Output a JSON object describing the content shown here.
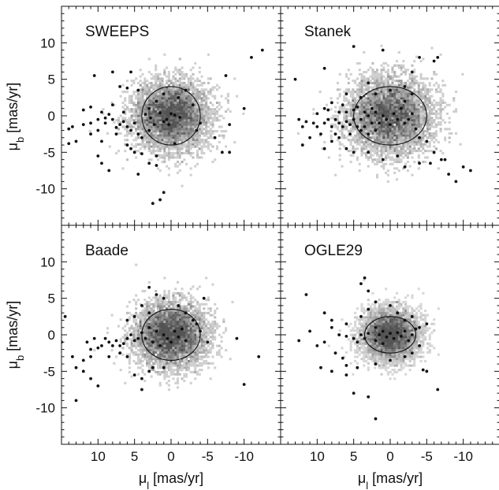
{
  "chart_data": {
    "type": "scatter",
    "layout": "2x2 panels sharing axes",
    "xlabel": {
      "main": "μ",
      "sub": "l",
      "unit": " [mas/yr]"
    },
    "ylabel": {
      "main": "μ",
      "sub": "b",
      "unit": " [mas/yr]"
    },
    "xlim": [
      15,
      -15
    ],
    "ylim": [
      -15,
      15
    ],
    "xticks": [
      10,
      5,
      0,
      -5,
      -10
    ],
    "yticks": [
      10,
      5,
      0,
      -5,
      -10
    ],
    "background": "grey-scale 2D density of field stars",
    "marker_color": "#111111",
    "panels": [
      {
        "name": "SWEEPS",
        "ellipse": {
          "cx": 0,
          "cy": 0,
          "rx": 4,
          "ry": 4
        },
        "points": [
          [
            3.5,
            0.2
          ],
          [
            2.8,
            -0.3
          ],
          [
            1.5,
            0.4
          ],
          [
            1.0,
            -0.8
          ],
          [
            0.6,
            -0.5
          ],
          [
            0,
            0.3
          ],
          [
            -0.5,
            0.1
          ],
          [
            -1.2,
            -0.2
          ],
          [
            0.3,
            -1.2
          ],
          [
            -0.5,
            -3.8
          ],
          [
            8,
            -0.5
          ],
          [
            8.5,
            0.2
          ],
          [
            9,
            -0.3
          ],
          [
            10,
            -0.5
          ],
          [
            11,
            -1.0
          ],
          [
            12,
            -1.2
          ],
          [
            13.5,
            -1.5
          ],
          [
            14,
            -1.8
          ],
          [
            13,
            -3.5
          ],
          [
            14,
            -3.8
          ],
          [
            11,
            -2.5
          ],
          [
            10,
            -2.0
          ],
          [
            9.5,
            -3.5
          ],
          [
            9,
            -1.0
          ],
          [
            7.5,
            -2.5
          ],
          [
            7,
            -1.2
          ],
          [
            6.5,
            -0.8
          ],
          [
            6,
            -1.5
          ],
          [
            5.5,
            -2.0
          ],
          [
            5,
            -1.0
          ],
          [
            4.5,
            -2.5
          ],
          [
            4,
            -3.0
          ],
          [
            6,
            -4
          ],
          [
            5.5,
            -4.5
          ],
          [
            5,
            -5
          ],
          [
            4,
            -5.2
          ],
          [
            2,
            -5.5
          ],
          [
            3,
            -6.5
          ],
          [
            2,
            -6.8
          ],
          [
            10,
            -5.5
          ],
          [
            9.5,
            -6.5
          ],
          [
            8.5,
            -7.5
          ],
          [
            4.5,
            -8
          ],
          [
            1,
            -10.5
          ],
          [
            1.5,
            -11.5
          ],
          [
            2.5,
            -12
          ],
          [
            10.5,
            5.5
          ],
          [
            6,
            3.8
          ],
          [
            4.5,
            3.5
          ],
          [
            7,
            4
          ],
          [
            5.5,
            6
          ],
          [
            8,
            6
          ],
          [
            3,
            1
          ],
          [
            2,
            2
          ],
          [
            1,
            3
          ],
          [
            -1,
            2.5
          ],
          [
            -2,
            3.5
          ],
          [
            -3,
            1.5
          ],
          [
            -4,
            -1
          ],
          [
            -3.5,
            -2
          ],
          [
            -6,
            -3
          ],
          [
            -7,
            -5
          ],
          [
            -8,
            -5
          ],
          [
            -7.5,
            5.5
          ],
          [
            -11,
            8
          ],
          [
            -12.5,
            9
          ],
          [
            -10,
            1
          ],
          [
            -8,
            -1.2
          ],
          [
            7.5,
            -1.6
          ],
          [
            3,
            -2
          ],
          [
            2.3,
            -1.2
          ],
          [
            6.5,
            0.5
          ],
          [
            9.5,
            0.5
          ],
          [
            12,
            0.8
          ],
          [
            11,
            1.2
          ],
          [
            8,
            1.5
          ]
        ]
      },
      {
        "name": "Stanek",
        "ellipse": {
          "cx": 0,
          "cy": 0,
          "rx": 5,
          "ry": 4
        },
        "points": [
          [
            13,
            5
          ],
          [
            12.5,
            -0.5
          ],
          [
            12,
            -1.5
          ],
          [
            11.5,
            -0.8
          ],
          [
            10.5,
            -1.0
          ],
          [
            10,
            0.3
          ],
          [
            10,
            -1.5
          ],
          [
            9.5,
            -2.5
          ],
          [
            9,
            -1.0
          ],
          [
            9,
            1.0
          ],
          [
            8.5,
            -0.5
          ],
          [
            8.5,
            0.8
          ],
          [
            8,
            -1.5
          ],
          [
            8,
            1.8
          ],
          [
            7.5,
            -0.5
          ],
          [
            7.5,
            -2.5
          ],
          [
            7,
            0.5
          ],
          [
            7,
            -1.0
          ],
          [
            6.5,
            -1.5
          ],
          [
            6.5,
            1.5
          ],
          [
            6,
            -0.8
          ],
          [
            6,
            0.5
          ],
          [
            5.5,
            -1.2
          ],
          [
            5.5,
            -2.5
          ],
          [
            5,
            0.8
          ],
          [
            5,
            -0.5
          ],
          [
            4.5,
            -1.5
          ],
          [
            4.5,
            1.2
          ],
          [
            4,
            -0.5
          ],
          [
            4,
            -2
          ],
          [
            3.5,
            0.5
          ],
          [
            3.5,
            -1.5
          ],
          [
            3,
            0
          ],
          [
            3,
            -2.5
          ],
          [
            2.5,
            1
          ],
          [
            2.5,
            -1
          ],
          [
            2,
            0.5
          ],
          [
            2,
            -2
          ],
          [
            1.5,
            -1
          ],
          [
            1,
            0
          ],
          [
            0.5,
            -0.5
          ],
          [
            0,
            -1.2
          ],
          [
            -0.5,
            0.3
          ],
          [
            -1,
            -0.5
          ],
          [
            -1.5,
            1
          ],
          [
            -2,
            -1
          ],
          [
            -2.5,
            -0.5
          ],
          [
            -3,
            0.3
          ],
          [
            -3.5,
            -1.8
          ],
          [
            -4,
            -3
          ],
          [
            -5,
            -3.5
          ],
          [
            -6,
            -5
          ],
          [
            -7,
            -6
          ],
          [
            -8,
            -8
          ],
          [
            -9,
            -9
          ],
          [
            -6,
            7.5
          ],
          [
            -6.5,
            8
          ],
          [
            -4,
            8
          ],
          [
            -3,
            6
          ],
          [
            1,
            9
          ],
          [
            5,
            9.5
          ],
          [
            9,
            6.5
          ],
          [
            -2,
            4
          ],
          [
            0,
            3.5
          ],
          [
            3,
            4.5
          ],
          [
            6,
            -4.5
          ],
          [
            5,
            -5
          ],
          [
            3,
            -5
          ],
          [
            1,
            -6
          ],
          [
            -1,
            -5.5
          ],
          [
            -2,
            -7
          ],
          [
            -4,
            -6.5
          ],
          [
            -5.5,
            -6.5
          ],
          [
            -7.5,
            -6
          ],
          [
            -10,
            -7
          ],
          [
            -11,
            -7.5
          ],
          [
            9,
            -4.5
          ],
          [
            8,
            -3.5
          ],
          [
            7,
            -3
          ],
          [
            11,
            -3
          ],
          [
            12,
            -4
          ],
          [
            6,
            3
          ],
          [
            4,
            2.5
          ],
          [
            2,
            3
          ],
          [
            -2,
            2
          ],
          [
            -3,
            3
          ]
        ]
      },
      {
        "name": "Baade",
        "ellipse": {
          "cx": 0,
          "cy": 0,
          "rx": 4,
          "ry": 3.5
        },
        "points": [
          [
            3,
            1
          ],
          [
            2,
            0.5
          ],
          [
            1,
            0
          ],
          [
            0.5,
            -0.5
          ],
          [
            0,
            -1
          ],
          [
            -0.5,
            0.5
          ],
          [
            -1,
            -0.3
          ],
          [
            -1.5,
            0.8
          ],
          [
            -2,
            -0.8
          ],
          [
            1.5,
            -1.5
          ],
          [
            2.5,
            -1
          ],
          [
            3.5,
            -0.5
          ],
          [
            4,
            0.3
          ],
          [
            4.5,
            -0.5
          ],
          [
            5,
            -0.8
          ],
          [
            5.5,
            0
          ],
          [
            6,
            -0.5
          ],
          [
            6.5,
            -1.2
          ],
          [
            7,
            -1.5
          ],
          [
            7.5,
            -0.8
          ],
          [
            8,
            -1.5
          ],
          [
            8.5,
            -1
          ],
          [
            9,
            -0.5
          ],
          [
            9.5,
            -1.5
          ],
          [
            10,
            -1.8
          ],
          [
            10.5,
            -0.5
          ],
          [
            11,
            -2
          ],
          [
            11.5,
            -1
          ],
          [
            11,
            -3
          ],
          [
            12,
            -3.5
          ],
          [
            13.5,
            -3
          ],
          [
            13,
            -4.5
          ],
          [
            12,
            -5
          ],
          [
            11,
            -6
          ],
          [
            10,
            -7
          ],
          [
            13,
            -9
          ],
          [
            15,
            -1
          ],
          [
            14.5,
            2.5
          ],
          [
            6,
            2
          ],
          [
            5,
            2.5
          ],
          [
            3,
            3
          ],
          [
            4,
            4
          ],
          [
            3,
            6.5
          ],
          [
            2,
            5.5
          ],
          [
            1,
            5
          ],
          [
            -1,
            4
          ],
          [
            -2,
            3
          ],
          [
            -3,
            2
          ],
          [
            -3.5,
            1.5
          ],
          [
            -4,
            0.5
          ],
          [
            -4.5,
            5
          ],
          [
            -5,
            -1
          ],
          [
            -9,
            -0.5
          ],
          [
            -12,
            -3
          ],
          [
            -10,
            -6.8
          ],
          [
            5,
            -5.5
          ],
          [
            4,
            -6
          ],
          [
            3,
            -5
          ],
          [
            1,
            -4.5
          ],
          [
            6,
            -3
          ],
          [
            7,
            -2.5
          ],
          [
            8.5,
            -3
          ],
          [
            4,
            -7.5
          ],
          [
            2.5,
            -4.5
          ]
        ]
      },
      {
        "name": "OGLE29",
        "ellipse": {
          "cx": 0,
          "cy": 0,
          "rx": 3.5,
          "ry": 2.5
        },
        "points": [
          [
            2,
            1
          ],
          [
            1.5,
            0
          ],
          [
            1,
            0.5
          ],
          [
            0.5,
            -0.3
          ],
          [
            0,
            0.2
          ],
          [
            -0.5,
            -0.5
          ],
          [
            -1,
            0.3
          ],
          [
            -1.5,
            -0.2
          ],
          [
            -2,
            0.5
          ],
          [
            -2.5,
            -0.8
          ],
          [
            -3,
            0
          ],
          [
            -3.5,
            0.8
          ],
          [
            1,
            -1.2
          ],
          [
            2,
            -0.8
          ],
          [
            3,
            0.2
          ],
          [
            3.5,
            -0.5
          ],
          [
            4,
            0
          ],
          [
            4.5,
            -1
          ],
          [
            5,
            -0.5
          ],
          [
            6,
            -0.2
          ],
          [
            7,
            0
          ],
          [
            8,
            1
          ],
          [
            9,
            -1
          ],
          [
            10,
            -1.5
          ],
          [
            11,
            0.5
          ],
          [
            12.5,
            -0.8
          ],
          [
            11.5,
            5.5
          ],
          [
            9,
            3
          ],
          [
            8,
            2
          ],
          [
            6,
            1.5
          ],
          [
            4,
            2.5
          ],
          [
            3,
            3.5
          ],
          [
            2,
            4.5
          ],
          [
            4,
            7
          ],
          [
            3.5,
            7.8
          ],
          [
            3,
            6
          ],
          [
            0,
            4
          ],
          [
            -1,
            3
          ],
          [
            -2,
            2
          ],
          [
            -3,
            2.5
          ],
          [
            -4,
            1
          ],
          [
            -5,
            1.5
          ],
          [
            -4,
            -1.5
          ],
          [
            -3,
            -2.5
          ],
          [
            -4.5,
            -4.8
          ],
          [
            -5,
            -5
          ],
          [
            -6.5,
            -7.5
          ],
          [
            -2,
            -3
          ],
          [
            0,
            -3.5
          ],
          [
            2,
            -4
          ],
          [
            4.5,
            -4.5
          ],
          [
            6,
            -4.2
          ],
          [
            9.5,
            -4.5
          ],
          [
            8,
            -5
          ],
          [
            6,
            -5.5
          ],
          [
            5,
            -8
          ],
          [
            3,
            -8.5
          ],
          [
            2,
            -11.5
          ],
          [
            6.5,
            -3.2
          ],
          [
            7.5,
            -2.5
          ]
        ]
      }
    ]
  }
}
